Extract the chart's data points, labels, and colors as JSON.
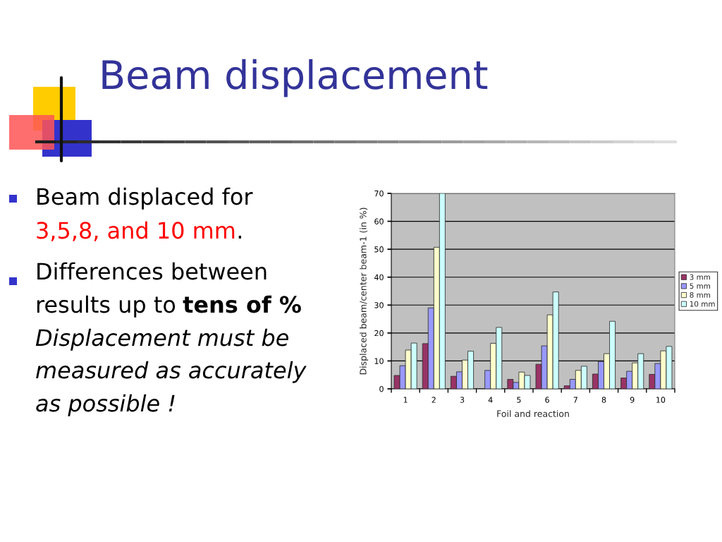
{
  "chart_data": {
    "type": "bar",
    "title": "Beam displacement",
    "xlabel": "Foil and reaction",
    "ylabel": "Displaced beam/center beam-1 (in %)",
    "categories": [
      "1",
      "2",
      "3",
      "4",
      "5",
      "6",
      "7",
      "8",
      "9",
      "10"
    ],
    "series": [
      {
        "name": "3 mm",
        "color": "#993366",
        "values": [
          4.8,
          16.2,
          4.5,
          null,
          3.4,
          8.8,
          1.1,
          5.3,
          3.9,
          5.2
        ]
      },
      {
        "name": "5 mm",
        "color": "#9999ff",
        "values": [
          8.3,
          29.0,
          6.1,
          6.6,
          2.3,
          15.4,
          3.4,
          9.8,
          6.3,
          9.1
        ]
      },
      {
        "name": "8 mm",
        "color": "#ffffcc",
        "values": [
          13.9,
          50.7,
          10.3,
          16.3,
          6.0,
          26.5,
          6.6,
          12.6,
          9.3,
          13.6
        ]
      },
      {
        "name": "10 mm",
        "color": "#ccffff",
        "values": [
          16.4,
          70.0,
          13.5,
          22.0,
          4.8,
          34.7,
          8.1,
          24.2,
          12.6,
          15.2
        ]
      }
    ],
    "ylim": [
      0,
      70
    ],
    "yticks": [
      0,
      10,
      20,
      30,
      40,
      50,
      60,
      70
    ],
    "grid": "y",
    "legend": "right",
    "annotations": [
      "Beam displaced for",
      "3,5,8, and 10 mm",
      ".",
      "Differences between",
      "results up to",
      "tens of %",
      "Displacement must be",
      "measured as accurately",
      "as possible !"
    ]
  }
}
